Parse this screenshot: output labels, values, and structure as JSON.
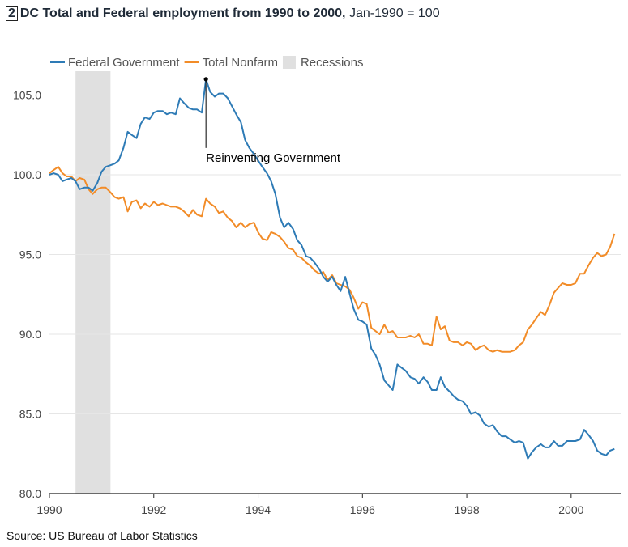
{
  "header": {
    "figure_number": "2",
    "title_bold": "DC Total and Federal employment from 1990 to 2000,",
    "title_rest": " Jan-1990 = 100"
  },
  "source": "Source: US Bureau of Labor Statistics",
  "chart_data": {
    "type": "line",
    "title": "DC Total and Federal employment from 1990 to 2000, Jan-1990 = 100",
    "xlabel": "",
    "ylabel": "",
    "xlim": [
      1990,
      2000.95
    ],
    "ylim": [
      80,
      106.5
    ],
    "x_ticks": [
      1990,
      1992,
      1994,
      1996,
      1998,
      2000
    ],
    "x_tick_labels": [
      "1990",
      "1992",
      "1994",
      "1996",
      "1998",
      "2000"
    ],
    "y_ticks": [
      80,
      85,
      90,
      95,
      100,
      105
    ],
    "y_tick_labels": [
      "80.0",
      "85.0",
      "90.0",
      "95.0",
      "100.0",
      "105.0"
    ],
    "grid": "horizontal",
    "legend_position": "top-left",
    "recessions": [
      {
        "label": "Recessions",
        "start": 1990.5,
        "end": 1991.17,
        "color": "#e0e0e0"
      }
    ],
    "series": [
      {
        "name": "Federal Government",
        "color": "#2e7bb6",
        "points": [
          [
            1990.0,
            100.0
          ],
          [
            1990.08,
            100.1
          ],
          [
            1990.17,
            100.0
          ],
          [
            1990.25,
            99.6
          ],
          [
            1990.33,
            99.7
          ],
          [
            1990.42,
            99.8
          ],
          [
            1990.5,
            99.6
          ],
          [
            1990.58,
            99.1
          ],
          [
            1990.67,
            99.2
          ],
          [
            1990.75,
            99.2
          ],
          [
            1990.83,
            99.0
          ],
          [
            1990.92,
            99.5
          ],
          [
            1991.0,
            100.2
          ],
          [
            1991.08,
            100.5
          ],
          [
            1991.17,
            100.6
          ],
          [
            1991.25,
            100.7
          ],
          [
            1991.33,
            100.9
          ],
          [
            1991.42,
            101.7
          ],
          [
            1991.5,
            102.7
          ],
          [
            1991.58,
            102.5
          ],
          [
            1991.67,
            102.3
          ],
          [
            1991.75,
            103.2
          ],
          [
            1991.83,
            103.6
          ],
          [
            1991.92,
            103.5
          ],
          [
            1992.0,
            103.9
          ],
          [
            1992.08,
            104.0
          ],
          [
            1992.17,
            104.0
          ],
          [
            1992.25,
            103.8
          ],
          [
            1992.33,
            103.9
          ],
          [
            1992.42,
            103.8
          ],
          [
            1992.5,
            104.8
          ],
          [
            1992.58,
            104.5
          ],
          [
            1992.67,
            104.2
          ],
          [
            1992.75,
            104.1
          ],
          [
            1992.83,
            104.1
          ],
          [
            1992.92,
            103.9
          ],
          [
            1993.0,
            106.0
          ],
          [
            1993.08,
            105.2
          ],
          [
            1993.17,
            104.9
          ],
          [
            1993.25,
            105.1
          ],
          [
            1993.33,
            105.1
          ],
          [
            1993.42,
            104.8
          ],
          [
            1993.5,
            104.3
          ],
          [
            1993.58,
            103.8
          ],
          [
            1993.67,
            103.3
          ],
          [
            1993.75,
            102.2
          ],
          [
            1993.83,
            101.7
          ],
          [
            1993.92,
            101.3
          ],
          [
            1994.0,
            100.9
          ],
          [
            1994.08,
            100.5
          ],
          [
            1994.17,
            100.1
          ],
          [
            1994.25,
            99.6
          ],
          [
            1994.33,
            98.8
          ],
          [
            1994.42,
            97.3
          ],
          [
            1994.5,
            96.7
          ],
          [
            1994.58,
            97.0
          ],
          [
            1994.67,
            96.6
          ],
          [
            1994.75,
            95.9
          ],
          [
            1994.83,
            95.6
          ],
          [
            1994.92,
            94.9
          ],
          [
            1995.0,
            94.8
          ],
          [
            1995.08,
            94.5
          ],
          [
            1995.17,
            94.1
          ],
          [
            1995.25,
            93.6
          ],
          [
            1995.33,
            93.3
          ],
          [
            1995.42,
            93.6
          ],
          [
            1995.5,
            93.1
          ],
          [
            1995.58,
            92.7
          ],
          [
            1995.67,
            93.6
          ],
          [
            1995.75,
            92.6
          ],
          [
            1995.83,
            91.6
          ],
          [
            1995.92,
            90.9
          ],
          [
            1996.0,
            90.8
          ],
          [
            1996.08,
            90.6
          ],
          [
            1996.17,
            89.1
          ],
          [
            1996.25,
            88.7
          ],
          [
            1996.33,
            88.1
          ],
          [
            1996.42,
            87.1
          ],
          [
            1996.5,
            86.8
          ],
          [
            1996.58,
            86.5
          ],
          [
            1996.67,
            88.1
          ],
          [
            1996.75,
            87.9
          ],
          [
            1996.83,
            87.7
          ],
          [
            1996.92,
            87.3
          ],
          [
            1997.0,
            87.2
          ],
          [
            1997.08,
            86.9
          ],
          [
            1997.17,
            87.3
          ],
          [
            1997.25,
            87.0
          ],
          [
            1997.33,
            86.5
          ],
          [
            1997.42,
            86.5
          ],
          [
            1997.5,
            87.3
          ],
          [
            1997.58,
            86.7
          ],
          [
            1997.67,
            86.4
          ],
          [
            1997.75,
            86.1
          ],
          [
            1997.83,
            85.9
          ],
          [
            1997.92,
            85.8
          ],
          [
            1998.0,
            85.5
          ],
          [
            1998.08,
            85.0
          ],
          [
            1998.17,
            85.1
          ],
          [
            1998.25,
            84.9
          ],
          [
            1998.33,
            84.4
          ],
          [
            1998.42,
            84.2
          ],
          [
            1998.5,
            84.3
          ],
          [
            1998.58,
            83.9
          ],
          [
            1998.67,
            83.6
          ],
          [
            1998.75,
            83.6
          ],
          [
            1998.83,
            83.4
          ],
          [
            1998.92,
            83.2
          ],
          [
            1999.0,
            83.3
          ],
          [
            1999.08,
            83.2
          ],
          [
            1999.17,
            82.2
          ],
          [
            1999.25,
            82.6
          ],
          [
            1999.33,
            82.9
          ],
          [
            1999.42,
            83.1
          ],
          [
            1999.5,
            82.9
          ],
          [
            1999.58,
            82.9
          ],
          [
            1999.67,
            83.3
          ],
          [
            1999.75,
            83.0
          ],
          [
            1999.83,
            83.0
          ],
          [
            1999.92,
            83.3
          ],
          [
            2000.0,
            83.3
          ],
          [
            2000.08,
            83.3
          ],
          [
            2000.17,
            83.4
          ],
          [
            2000.25,
            84.0
          ],
          [
            2000.33,
            83.7
          ],
          [
            2000.42,
            83.3
          ],
          [
            2000.5,
            82.7
          ],
          [
            2000.58,
            82.5
          ],
          [
            2000.67,
            82.4
          ],
          [
            2000.75,
            82.7
          ],
          [
            2000.83,
            82.8
          ]
        ]
      },
      {
        "name": "Total Nonfarm",
        "color": "#f28c28",
        "points": [
          [
            1990.0,
            100.1
          ],
          [
            1990.08,
            100.3
          ],
          [
            1990.17,
            100.5
          ],
          [
            1990.25,
            100.1
          ],
          [
            1990.33,
            99.9
          ],
          [
            1990.42,
            99.9
          ],
          [
            1990.5,
            99.6
          ],
          [
            1990.58,
            99.8
          ],
          [
            1990.67,
            99.7
          ],
          [
            1990.75,
            99.1
          ],
          [
            1990.83,
            98.8
          ],
          [
            1990.92,
            99.1
          ],
          [
            1991.0,
            99.2
          ],
          [
            1991.08,
            99.2
          ],
          [
            1991.17,
            98.9
          ],
          [
            1991.25,
            98.6
          ],
          [
            1991.33,
            98.5
          ],
          [
            1991.42,
            98.6
          ],
          [
            1991.5,
            97.7
          ],
          [
            1991.58,
            98.3
          ],
          [
            1991.67,
            98.4
          ],
          [
            1991.75,
            97.9
          ],
          [
            1991.83,
            98.2
          ],
          [
            1991.92,
            98.0
          ],
          [
            1992.0,
            98.3
          ],
          [
            1992.08,
            98.1
          ],
          [
            1992.17,
            98.2
          ],
          [
            1992.25,
            98.1
          ],
          [
            1992.33,
            98.0
          ],
          [
            1992.42,
            98.0
          ],
          [
            1992.5,
            97.9
          ],
          [
            1992.58,
            97.7
          ],
          [
            1992.67,
            97.4
          ],
          [
            1992.75,
            97.8
          ],
          [
            1992.83,
            97.5
          ],
          [
            1992.92,
            97.4
          ],
          [
            1993.0,
            98.5
          ],
          [
            1993.08,
            98.2
          ],
          [
            1993.17,
            98.0
          ],
          [
            1993.25,
            97.6
          ],
          [
            1993.33,
            97.7
          ],
          [
            1993.42,
            97.3
          ],
          [
            1993.5,
            97.1
          ],
          [
            1993.58,
            96.7
          ],
          [
            1993.67,
            97.0
          ],
          [
            1993.75,
            96.7
          ],
          [
            1993.83,
            96.9
          ],
          [
            1993.92,
            97.0
          ],
          [
            1994.0,
            96.4
          ],
          [
            1994.08,
            96.0
          ],
          [
            1994.17,
            95.9
          ],
          [
            1994.25,
            96.4
          ],
          [
            1994.33,
            96.3
          ],
          [
            1994.42,
            96.1
          ],
          [
            1994.5,
            95.8
          ],
          [
            1994.58,
            95.4
          ],
          [
            1994.67,
            95.3
          ],
          [
            1994.75,
            94.9
          ],
          [
            1994.83,
            94.8
          ],
          [
            1994.92,
            94.5
          ],
          [
            1995.0,
            94.3
          ],
          [
            1995.08,
            94.0
          ],
          [
            1995.17,
            93.8
          ],
          [
            1995.25,
            93.9
          ],
          [
            1995.33,
            93.4
          ],
          [
            1995.42,
            93.7
          ],
          [
            1995.5,
            93.2
          ],
          [
            1995.58,
            93.1
          ],
          [
            1995.67,
            93.0
          ],
          [
            1995.75,
            92.8
          ],
          [
            1995.83,
            92.3
          ],
          [
            1995.92,
            91.6
          ],
          [
            1996.0,
            92.0
          ],
          [
            1996.08,
            91.9
          ],
          [
            1996.17,
            90.4
          ],
          [
            1996.25,
            90.2
          ],
          [
            1996.33,
            90.0
          ],
          [
            1996.42,
            90.6
          ],
          [
            1996.5,
            90.1
          ],
          [
            1996.58,
            90.2
          ],
          [
            1996.67,
            89.8
          ],
          [
            1996.75,
            89.8
          ],
          [
            1996.83,
            89.8
          ],
          [
            1996.92,
            89.9
          ],
          [
            1997.0,
            89.8
          ],
          [
            1997.08,
            90.0
          ],
          [
            1997.17,
            89.4
          ],
          [
            1997.25,
            89.4
          ],
          [
            1997.33,
            89.3
          ],
          [
            1997.42,
            91.1
          ],
          [
            1997.5,
            90.3
          ],
          [
            1997.58,
            90.5
          ],
          [
            1997.67,
            89.6
          ],
          [
            1997.75,
            89.5
          ],
          [
            1997.83,
            89.5
          ],
          [
            1997.92,
            89.3
          ],
          [
            1998.0,
            89.5
          ],
          [
            1998.08,
            89.4
          ],
          [
            1998.17,
            89.0
          ],
          [
            1998.25,
            89.2
          ],
          [
            1998.33,
            89.3
          ],
          [
            1998.42,
            89.0
          ],
          [
            1998.5,
            88.9
          ],
          [
            1998.58,
            89.0
          ],
          [
            1998.67,
            88.9
          ],
          [
            1998.75,
            88.9
          ],
          [
            1998.83,
            88.9
          ],
          [
            1998.92,
            89.0
          ],
          [
            1999.0,
            89.3
          ],
          [
            1999.08,
            89.5
          ],
          [
            1999.17,
            90.3
          ],
          [
            1999.25,
            90.6
          ],
          [
            1999.33,
            91.0
          ],
          [
            1999.42,
            91.4
          ],
          [
            1999.5,
            91.2
          ],
          [
            1999.58,
            91.8
          ],
          [
            1999.67,
            92.6
          ],
          [
            1999.75,
            92.9
          ],
          [
            1999.83,
            93.2
          ],
          [
            1999.92,
            93.1
          ],
          [
            2000.0,
            93.1
          ],
          [
            2000.08,
            93.2
          ],
          [
            2000.17,
            93.8
          ],
          [
            2000.25,
            93.8
          ],
          [
            2000.33,
            94.3
          ],
          [
            2000.42,
            94.8
          ],
          [
            2000.5,
            95.1
          ],
          [
            2000.58,
            94.9
          ],
          [
            2000.67,
            95.0
          ],
          [
            2000.75,
            95.5
          ],
          [
            2000.83,
            96.3
          ]
        ]
      }
    ],
    "annotations": [
      {
        "text": "Reinventing Government",
        "x": 1993.0,
        "y": 106.0
      }
    ]
  }
}
